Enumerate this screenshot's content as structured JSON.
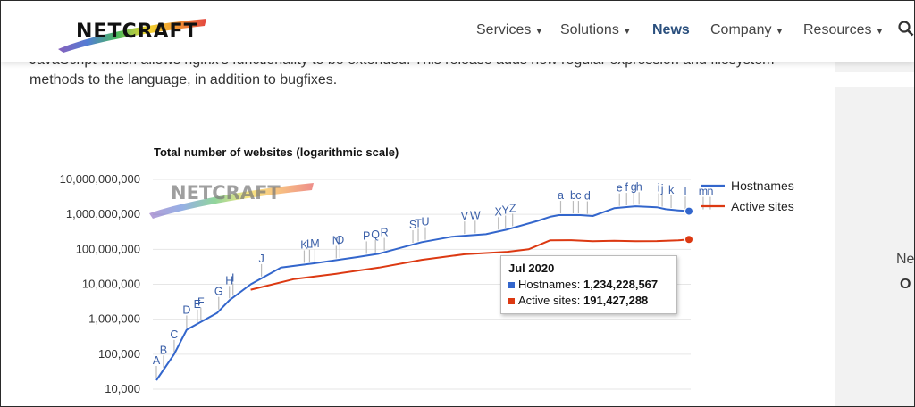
{
  "header": {
    "logo": "NETCRAFT",
    "nav": [
      {
        "label": "Services",
        "active": false
      },
      {
        "label": "Solutions",
        "active": false
      },
      {
        "label": "News",
        "active": true
      },
      {
        "label": "Company",
        "active": false
      },
      {
        "label": "Resources",
        "active": false
      }
    ]
  },
  "article": {
    "line1": "JavaScript which allows nginx's functionality to be extended. This release adds new regular expression and filesystem",
    "line2": "methods to the language, in addition to bugfixes."
  },
  "sidebar": {
    "text1": "Ne",
    "text2": "O"
  },
  "chart_data": {
    "type": "line",
    "title": "Total number of websites (logarithmic scale)",
    "yscale": "log",
    "ylim": [
      10000,
      10000000000
    ],
    "yticks": [
      "10,000",
      "100,000",
      "1,000,000",
      "10,000,000",
      "100,000,000",
      "1,000,000,000",
      "10,000,000,000"
    ],
    "watermark": "NETCRAFT",
    "legend_position": "right",
    "x_start": "Aug 1995",
    "x_end": "Jul 2020",
    "series": [
      {
        "name": "Hostnames",
        "color": "#3366cc",
        "x": [
          "Aug 1995",
          "Jun 1996",
          "Jan 1997",
          "Jun 1998",
          "Jan 1999",
          "Jan 2000",
          "Jun 2001",
          "Jan 2003",
          "Jan 2005",
          "Jan 2006",
          "Jan 2008",
          "Jun 2009",
          "Jan 2011",
          "Jan 2012",
          "Jun 2013",
          "Jan 2014",
          "Jun 2014",
          "Jun 2015",
          "Jan 2016",
          "Jan 2017",
          "Jan 2018",
          "Jan 2019",
          "Jun 2019",
          "Jan 2020",
          "Jul 2020"
        ],
        "values": [
          18000,
          100000,
          500000,
          1500000,
          3500000,
          10000000,
          30000000,
          40000000,
          60000000,
          75000000,
          160000000,
          230000000,
          270000000,
          370000000,
          650000000,
          850000000,
          950000000,
          950000000,
          900000000,
          1500000000,
          1700000000,
          1600000000,
          1400000000,
          1300000000,
          1234228567
        ]
      },
      {
        "name": "Active sites",
        "color": "#dc3912",
        "x": [
          "Jan 2000",
          "Jan 2002",
          "Jan 2004",
          "Jan 2006",
          "Jan 2008",
          "Jan 2010",
          "Jan 2012",
          "Jan 2013",
          "Jan 2014",
          "Jan 2015",
          "Jan 2016",
          "Jan 2017",
          "Jan 2018",
          "Jan 2019",
          "Jan 2020",
          "Jul 2020"
        ],
        "values": [
          7000000,
          14000000,
          20000000,
          30000000,
          50000000,
          72000000,
          85000000,
          100000000,
          180000000,
          183000000,
          170000000,
          175000000,
          170000000,
          172000000,
          180000000,
          191427288
        ]
      }
    ],
    "annotations": [
      {
        "label": "A",
        "date": "Aug 1995"
      },
      {
        "label": "B",
        "date": "Dec 1995"
      },
      {
        "label": "C",
        "date": "Jun 1996"
      },
      {
        "label": "D",
        "date": "Jan 1997"
      },
      {
        "label": "E",
        "date": "Jul 1997"
      },
      {
        "label": "F",
        "date": "Sep 1997"
      },
      {
        "label": "G",
        "date": "Jul 1998"
      },
      {
        "label": "H",
        "date": "Jan 1999"
      },
      {
        "label": "I",
        "date": "Mar 1999"
      },
      {
        "label": "J",
        "date": "Jul 2000"
      },
      {
        "label": "K",
        "date": "Jul 2002"
      },
      {
        "label": "L",
        "date": "Oct 2002"
      },
      {
        "label": "M",
        "date": "Jan 2003"
      },
      {
        "label": "N",
        "date": "Jan 2004"
      },
      {
        "label": "O",
        "date": "Mar 2004"
      },
      {
        "label": "P",
        "date": "Jun 2005"
      },
      {
        "label": "Q",
        "date": "Nov 2005"
      },
      {
        "label": "R",
        "date": "Apr 2006"
      },
      {
        "label": "S",
        "date": "Aug 2007"
      },
      {
        "label": "T",
        "date": "Nov 2007"
      },
      {
        "label": "U",
        "date": "Mar 2008"
      },
      {
        "label": "V",
        "date": "Jan 2010"
      },
      {
        "label": "W",
        "date": "Jul 2010"
      },
      {
        "label": "X",
        "date": "Aug 2011"
      },
      {
        "label": "Y",
        "date": "Dec 2011"
      },
      {
        "label": "Z",
        "date": "Apr 2012"
      },
      {
        "label": "a",
        "date": "Jul 2014"
      },
      {
        "label": "b",
        "date": "Feb 2015"
      },
      {
        "label": "c",
        "date": "May 2015"
      },
      {
        "label": "d",
        "date": "Oct 2015"
      },
      {
        "label": "e",
        "date": "Apr 2017"
      },
      {
        "label": "f",
        "date": "Aug 2017"
      },
      {
        "label": "g",
        "date": "Dec 2017"
      },
      {
        "label": "h",
        "date": "Mar 2018"
      },
      {
        "label": "i",
        "date": "Feb 2019"
      },
      {
        "label": "j",
        "date": "Apr 2019"
      },
      {
        "label": "k",
        "date": "Sep 2019"
      },
      {
        "label": "l",
        "date": "May 2020"
      },
      {
        "label": "m",
        "date": "Mar 2021"
      },
      {
        "label": "n",
        "date": "Jul 2021"
      }
    ],
    "tooltip": {
      "title": "Jul 2020",
      "rows": [
        {
          "label": "Hostnames:",
          "value": "1,234,228,567",
          "color": "#3366cc"
        },
        {
          "label": "Active sites:",
          "value": "191,427,288",
          "color": "#dc3912"
        }
      ]
    }
  }
}
